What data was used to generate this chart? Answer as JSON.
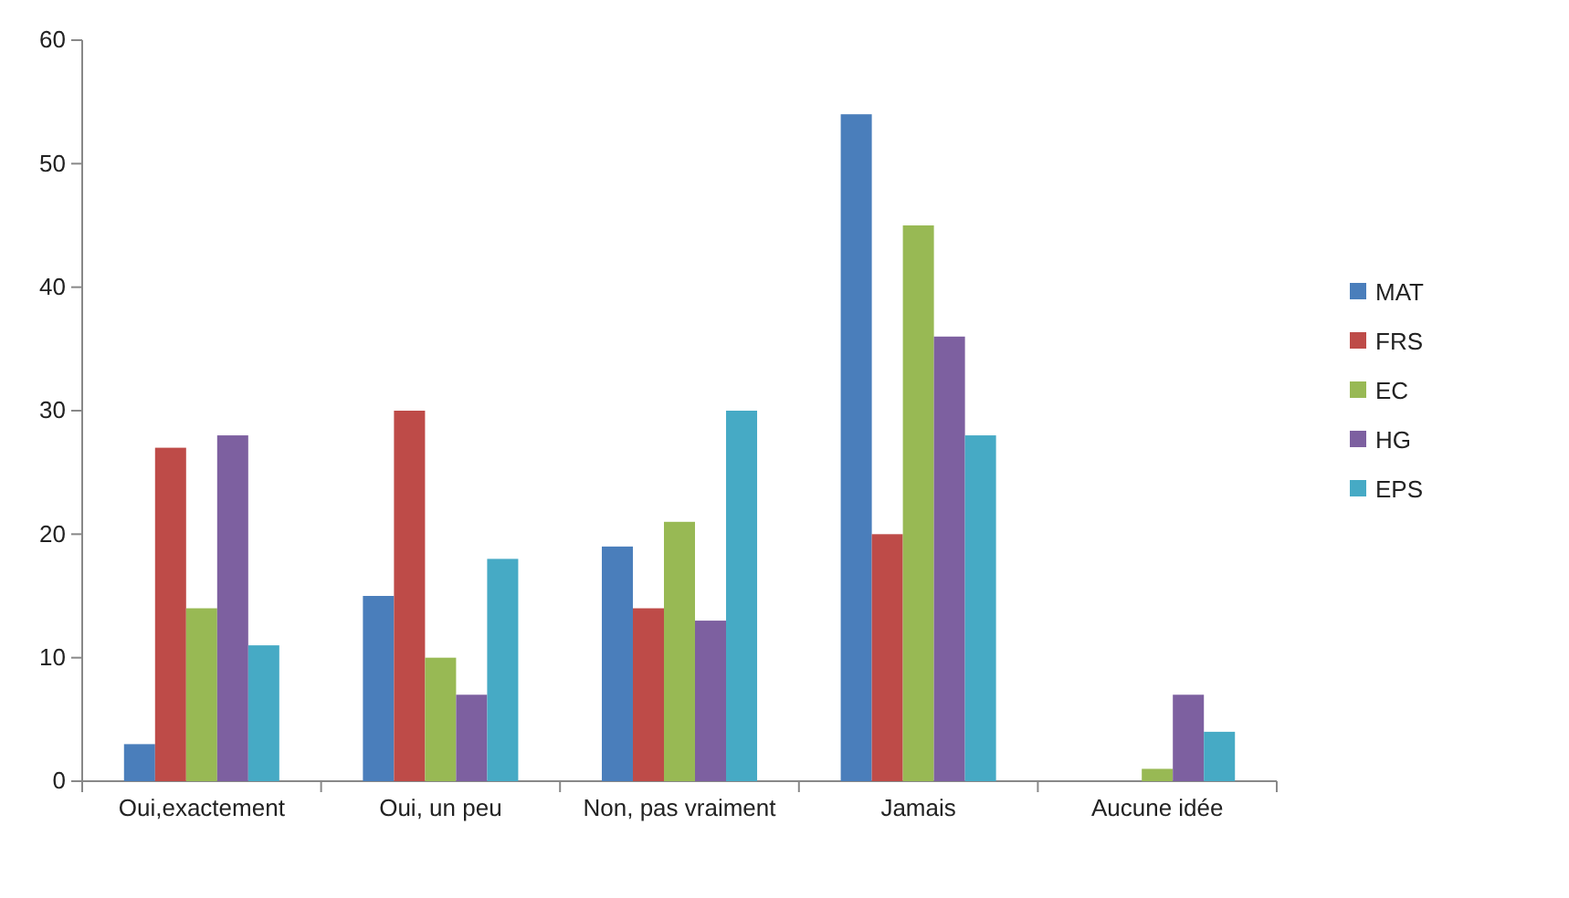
{
  "chart_data": {
    "type": "bar",
    "categories": [
      "Oui,exactement",
      "Oui, un peu",
      "Non, pas vraiment",
      "Jamais",
      "Aucune idée"
    ],
    "series": [
      {
        "name": "MAT",
        "color": "#4a7ebb",
        "values": [
          3,
          15,
          19,
          54,
          0
        ]
      },
      {
        "name": "FRS",
        "color": "#be4b48",
        "values": [
          27,
          30,
          14,
          20,
          0
        ]
      },
      {
        "name": "EC",
        "color": "#98b954",
        "values": [
          14,
          10,
          21,
          45,
          1
        ]
      },
      {
        "name": "HG",
        "color": "#7d60a0",
        "values": [
          28,
          7,
          13,
          36,
          7
        ]
      },
      {
        "name": "EPS",
        "color": "#46aac5",
        "values": [
          11,
          18,
          30,
          28,
          4
        ]
      }
    ],
    "ylim": [
      0,
      60
    ],
    "yticks": [
      0,
      10,
      20,
      30,
      40,
      50,
      60
    ],
    "grid": false,
    "legend": "right"
  }
}
